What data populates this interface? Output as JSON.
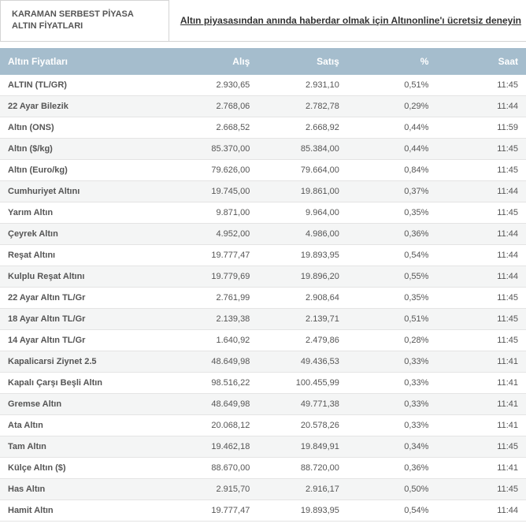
{
  "header": {
    "tab_title": "KARAMAN SERBEST PİYASA ALTIN FİYATLARI",
    "promo_text": "Altın piyasasından anında haberdar olmak için Altınonline'ı ücretsiz deneyin"
  },
  "columns": {
    "name": "Altın Fiyatları",
    "buy": "Alış",
    "sell": "Satış",
    "pct": "%",
    "time": "Saat"
  },
  "rows": [
    {
      "name": "ALTIN (TL/GR)",
      "buy": "2.930,65",
      "sell": "2.931,10",
      "pct": "0,51%",
      "time": "11:45"
    },
    {
      "name": "22 Ayar Bilezik",
      "buy": "2.768,06",
      "sell": "2.782,78",
      "pct": "0,29%",
      "time": "11:44"
    },
    {
      "name": "Altın (ONS)",
      "buy": "2.668,52",
      "sell": "2.668,92",
      "pct": "0,44%",
      "time": "11:59"
    },
    {
      "name": "Altın ($/kg)",
      "buy": "85.370,00",
      "sell": "85.384,00",
      "pct": "0,44%",
      "time": "11:45"
    },
    {
      "name": "Altın (Euro/kg)",
      "buy": "79.626,00",
      "sell": "79.664,00",
      "pct": "0,84%",
      "time": "11:45"
    },
    {
      "name": "Cumhuriyet Altını",
      "buy": "19.745,00",
      "sell": "19.861,00",
      "pct": "0,37%",
      "time": "11:44"
    },
    {
      "name": "Yarım Altın",
      "buy": "9.871,00",
      "sell": "9.964,00",
      "pct": "0,35%",
      "time": "11:45"
    },
    {
      "name": "Çeyrek Altın",
      "buy": "4.952,00",
      "sell": "4.986,00",
      "pct": "0,36%",
      "time": "11:44"
    },
    {
      "name": "Reşat Altını",
      "buy": "19.777,47",
      "sell": "19.893,95",
      "pct": "0,54%",
      "time": "11:44"
    },
    {
      "name": "Kulplu Reşat Altını",
      "buy": "19.779,69",
      "sell": "19.896,20",
      "pct": "0,55%",
      "time": "11:44"
    },
    {
      "name": "22 Ayar Altın TL/Gr",
      "buy": "2.761,99",
      "sell": "2.908,64",
      "pct": "0,35%",
      "time": "11:45"
    },
    {
      "name": "18 Ayar Altın TL/Gr",
      "buy": "2.139,38",
      "sell": "2.139,71",
      "pct": "0,51%",
      "time": "11:45"
    },
    {
      "name": "14 Ayar Altın TL/Gr",
      "buy": "1.640,92",
      "sell": "2.479,86",
      "pct": "0,28%",
      "time": "11:45"
    },
    {
      "name": "Kapalicarsi Ziynet 2.5",
      "buy": "48.649,98",
      "sell": "49.436,53",
      "pct": "0,33%",
      "time": "11:41"
    },
    {
      "name": "Kapalı Çarşı Beşli Altın",
      "buy": "98.516,22",
      "sell": "100.455,99",
      "pct": "0,33%",
      "time": "11:41"
    },
    {
      "name": "Gremse Altın",
      "buy": "48.649,98",
      "sell": "49.771,38",
      "pct": "0,33%",
      "time": "11:41"
    },
    {
      "name": "Ata Altın",
      "buy": "20.068,12",
      "sell": "20.578,26",
      "pct": "0,33%",
      "time": "11:41"
    },
    {
      "name": "Tam Altın",
      "buy": "19.462,18",
      "sell": "19.849,91",
      "pct": "0,34%",
      "time": "11:45"
    },
    {
      "name": "Külçe Altın ($)",
      "buy": "88.670,00",
      "sell": "88.720,00",
      "pct": "0,36%",
      "time": "11:41"
    },
    {
      "name": "Has Altın",
      "buy": "2.915,70",
      "sell": "2.916,17",
      "pct": "0,50%",
      "time": "11:45"
    },
    {
      "name": "Hamit Altın",
      "buy": "19.777,47",
      "sell": "19.893,95",
      "pct": "0,54%",
      "time": "11:44"
    }
  ]
}
